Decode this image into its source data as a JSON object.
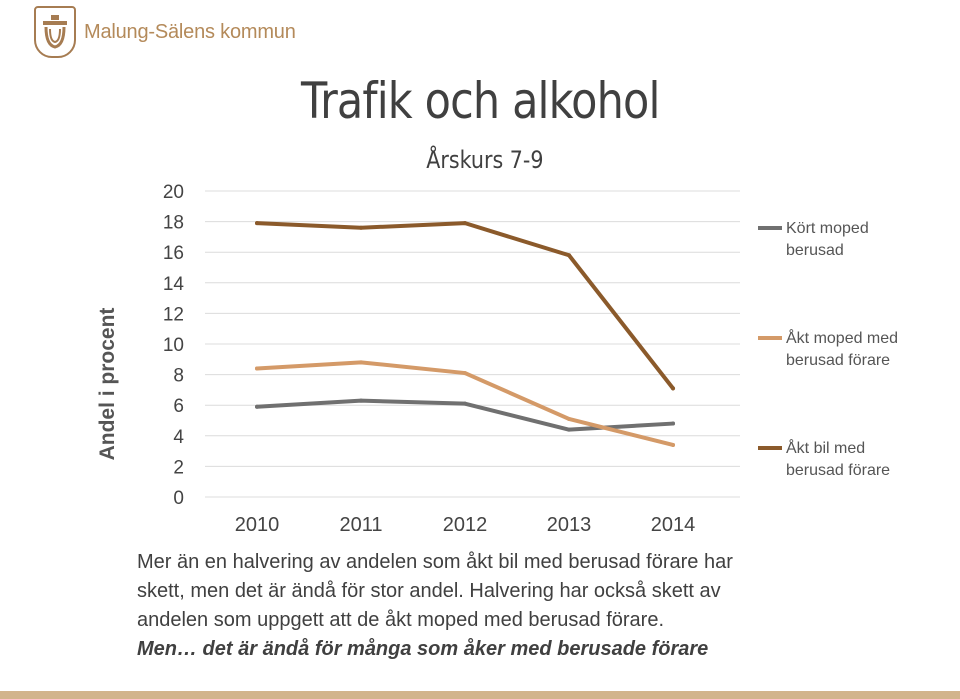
{
  "header": {
    "org_name": "Malung-Sälens kommun"
  },
  "slide": {
    "title": "Trafik och alkohol",
    "subtitle": "Årskurs 7-9"
  },
  "chart_data": {
    "type": "line",
    "x": [
      2010,
      2011,
      2012,
      2013,
      2014
    ],
    "categories": [
      "2010",
      "2011",
      "2012",
      "2013",
      "2014"
    ],
    "ylabel": "Andel i procent",
    "xlabel": "",
    "ylim": [
      0,
      20
    ],
    "yticks": [
      "0",
      "2",
      "4",
      "6",
      "8",
      "10",
      "12",
      "14",
      "16",
      "18",
      "20"
    ],
    "grid": true,
    "legend_position": "right",
    "series": [
      {
        "name": "Kört moped berusad",
        "values": [
          5.9,
          6.3,
          6.1,
          4.4,
          4.8
        ],
        "color": "#707070"
      },
      {
        "name": "Åkt moped med berusad förare",
        "values": [
          8.4,
          8.8,
          8.1,
          5.1,
          3.4
        ],
        "color": "#d49a68"
      },
      {
        "name": "Åkt bil med berusad förare",
        "values": [
          17.9,
          17.6,
          17.9,
          15.8,
          7.1
        ],
        "color": "#8b5a2b"
      }
    ]
  },
  "legend": {
    "items": [
      {
        "label": "Kört moped berusad",
        "color": "#707070"
      },
      {
        "label": "Åkt moped med berusad förare",
        "color": "#d49a68"
      },
      {
        "label": "Åkt bil med berusad förare",
        "color": "#8b5a2b"
      }
    ]
  },
  "body": {
    "line1": "Mer än en halvering av andelen som åkt bil med berusad förare  har",
    "line2": "skett, men det är ändå för stor andel. Halvering har också skett  av",
    "line3": "andelen som uppgett att de åkt moped med berusad förare.",
    "line4": "Men… det är ändå för många som åker med berusade förare"
  },
  "colors": {
    "brand": "#b48a5a",
    "bottom_rule": "#d2b48c"
  }
}
